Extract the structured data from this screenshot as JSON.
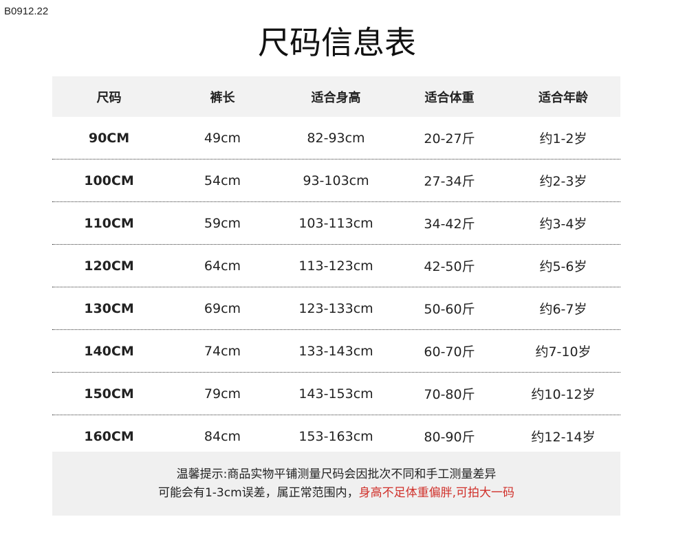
{
  "code": "B0912.22",
  "title": "尺码信息表",
  "table": {
    "headers": [
      "尺码",
      "裤长",
      "适合身高",
      "适合体重",
      "适合年龄"
    ],
    "rows": [
      [
        "90CM",
        "49cm",
        "82-93cm",
        "20-27斤",
        "约1-2岁"
      ],
      [
        "100CM",
        "54cm",
        "93-103cm",
        "27-34斤",
        "约2-3岁"
      ],
      [
        "110CM",
        "59cm",
        "103-113cm",
        "34-42斤",
        "约3-4岁"
      ],
      [
        "120CM",
        "64cm",
        "113-123cm",
        "42-50斤",
        "约5-6岁"
      ],
      [
        "130CM",
        "69cm",
        "123-133cm",
        "50-60斤",
        "约6-7岁"
      ],
      [
        "140CM",
        "74cm",
        "133-143cm",
        "60-70斤",
        "约7-10岁"
      ],
      [
        "150CM",
        "79cm",
        "143-153cm",
        "70-80斤",
        "约10-12岁"
      ],
      [
        "160CM",
        "84cm",
        "153-163cm",
        "80-90斤",
        "约12-14岁"
      ]
    ]
  },
  "note": {
    "line1": "温馨提示:商品实物平铺测量尺码会因批次不同和手工测量差异",
    "line2_plain": "可能会有1-3cm误差，属正常范围内，",
    "line2_red": "身高不足体重偏胖,可拍大一码",
    "red_color": "#d0302a"
  }
}
